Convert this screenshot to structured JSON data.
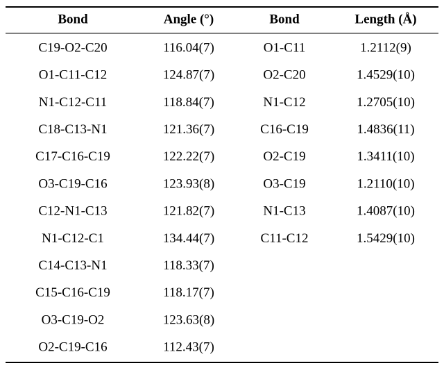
{
  "table": {
    "header": [
      "Bond",
      "Angle (°)",
      "Bond",
      "Length (Å)"
    ],
    "rows": [
      [
        "C19-O2-C20",
        "116.04(7)",
        "O1-C11",
        "1.2112(9)"
      ],
      [
        "O1-C11-C12",
        "124.87(7)",
        "O2-C20",
        "1.4529(10)"
      ],
      [
        "N1-C12-C11",
        "118.84(7)",
        "N1-C12",
        "1.2705(10)"
      ],
      [
        "C18-C13-N1",
        "121.36(7)",
        "C16-C19",
        "1.4836(11)"
      ],
      [
        "C17-C16-C19",
        "122.22(7)",
        "O2-C19",
        "1.3411(10)"
      ],
      [
        "O3-C19-C16",
        "123.93(8)",
        "O3-C19",
        "1.2110(10)"
      ],
      [
        "C12-N1-C13",
        "121.82(7)",
        "N1-C13",
        "1.4087(10)"
      ],
      [
        "N1-C12-C1",
        "134.44(7)",
        "C11-C12",
        "1.5429(10)"
      ],
      [
        "C14-C13-N1",
        "118.33(7)"
      ],
      [
        "C15-C16-C19",
        "118.17(7)"
      ],
      [
        "O3-C19-O2",
        "123.63(8)"
      ],
      [
        "O2-C19-C16",
        "112.43(7)"
      ]
    ]
  }
}
